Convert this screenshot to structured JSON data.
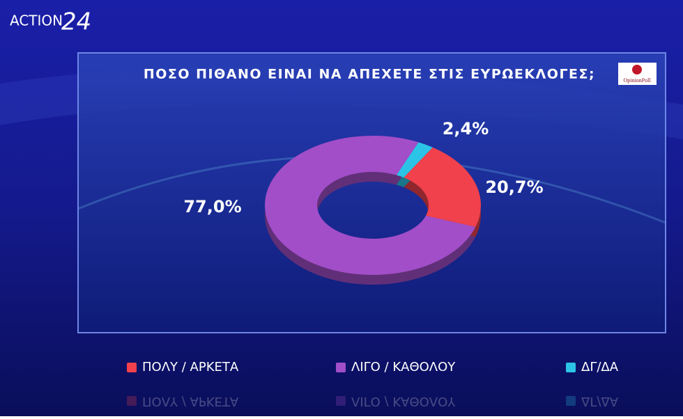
{
  "channel_logo": {
    "name": "ACTION",
    "number": "24"
  },
  "source_logo": "OpinionPoll",
  "chart_data": {
    "type": "pie",
    "donut": true,
    "title": "ΠΟΣΟ ΠΙΘΑΝΟ ΕΙΝΑΙ ΝΑ ΑΠΕΧΕΤΕ ΣΤΙΣ ΕΥΡΩΕΚΛΟΓΕΣ;",
    "categories": [
      "ΠΟΛΥ / ΑΡΚΕΤΑ",
      "ΛΙΓΟ / ΚΑΘΟΛΟΥ",
      "ΔΓ/ΔΑ"
    ],
    "values": [
      20.7,
      77.0,
      2.4
    ],
    "value_labels": [
      "20,7%",
      "77,0%",
      "2,4%"
    ],
    "colors": [
      "#f0414c",
      "#a24ec8",
      "#2cc4e6"
    ],
    "legend": "bottom"
  }
}
